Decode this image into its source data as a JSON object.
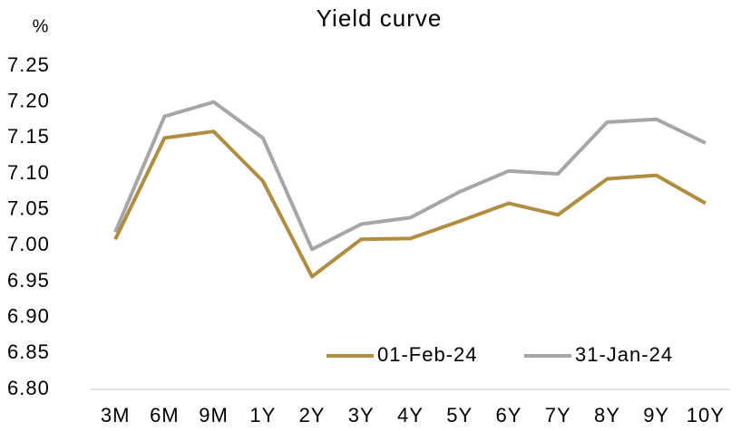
{
  "chart_data": {
    "type": "line",
    "title": "Yield curve",
    "y_label": "%",
    "categories": [
      "3M",
      "6M",
      "9M",
      "1Y",
      "2Y",
      "3Y",
      "4Y",
      "5Y",
      "6Y",
      "7Y",
      "8Y",
      "9Y",
      "10Y"
    ],
    "series": [
      {
        "name": "01-Feb-24",
        "color": "#b08d3f",
        "values": [
          7.009,
          7.15,
          7.159,
          7.09,
          6.957,
          7.009,
          7.01,
          7.034,
          7.059,
          7.043,
          7.093,
          7.098,
          7.059
        ]
      },
      {
        "name": "31-Jan-24",
        "color": "#a6a6a6",
        "values": [
          7.019,
          7.18,
          7.2,
          7.15,
          6.995,
          7.03,
          7.039,
          7.075,
          7.104,
          7.1,
          7.172,
          7.176,
          7.143
        ]
      }
    ],
    "ylim": [
      6.8,
      7.25
    ],
    "yticks": [
      {
        "value": 6.8,
        "label": "6.80"
      },
      6.85,
      {
        "value": 6.9,
        "label": "6.90"
      },
      6.95,
      {
        "value": 7.0,
        "label": "7.00"
      },
      7.05,
      {
        "value": 7.1,
        "label": "7.10"
      },
      7.15,
      {
        "value": 7.2,
        "label": "7.20"
      },
      7.25
    ],
    "grid": false,
    "legend": "bottom-right"
  }
}
